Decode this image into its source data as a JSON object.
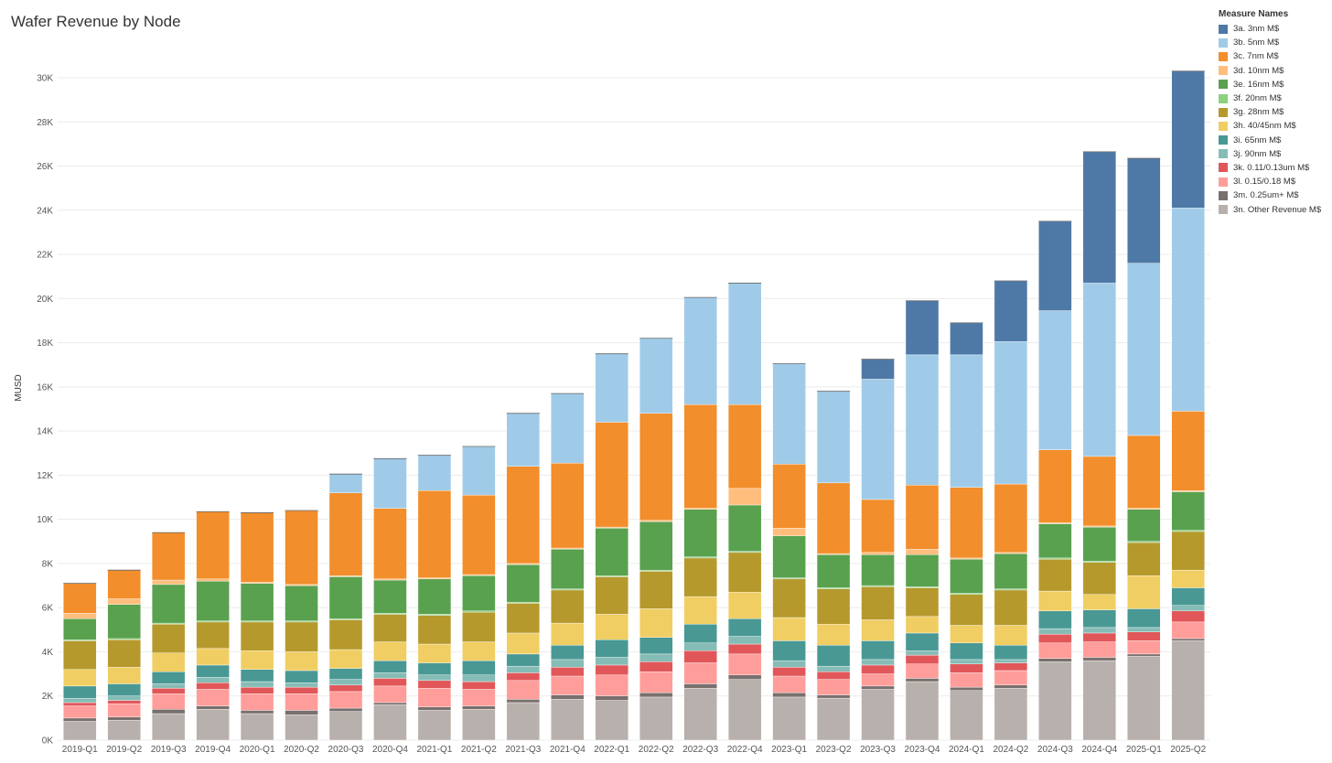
{
  "chart_data": {
    "type": "bar",
    "stacked": true,
    "title": "Wafer Revenue by Node",
    "ylabel": "MUSD",
    "ylim": [
      0,
      31000
    ],
    "yticks": [
      0,
      2000,
      4000,
      6000,
      8000,
      10000,
      12000,
      14000,
      16000,
      18000,
      20000,
      22000,
      24000,
      26000,
      28000,
      30000
    ],
    "ytick_labels": [
      "0K",
      "2K",
      "4K",
      "6K",
      "8K",
      "10K",
      "12K",
      "14K",
      "16K",
      "18K",
      "20K",
      "22K",
      "24K",
      "26K",
      "28K",
      "30K"
    ],
    "grid": true,
    "legend_position": "top-right",
    "legend_title": "Measure Names",
    "categories": [
      "2019-Q1",
      "2019-Q2",
      "2019-Q3",
      "2019-Q4",
      "2020-Q1",
      "2020-Q2",
      "2020-Q3",
      "2020-Q4",
      "2021-Q1",
      "2021-Q2",
      "2021-Q3",
      "2021-Q4",
      "2022-Q1",
      "2022-Q2",
      "2022-Q3",
      "2022-Q4",
      "2023-Q1",
      "2023-Q2",
      "2023-Q3",
      "2023-Q4",
      "2024-Q1",
      "2024-Q2",
      "2024-Q3",
      "2024-Q4",
      "2025-Q1",
      "2025-Q2"
    ],
    "series": [
      {
        "name": "3n. Other Revenue M$",
        "color": "#b8b0ac",
        "values": [
          850,
          900,
          1200,
          1400,
          1200,
          1150,
          1300,
          1600,
          1350,
          1400,
          1700,
          1850,
          1800,
          1950,
          2350,
          2750,
          1950,
          1900,
          2300,
          2650,
          2250,
          2350,
          3550,
          3600,
          3800,
          4500
        ]
      },
      {
        "name": "3m. 0.25um+ M$",
        "color": "#79706e",
        "values": [
          150,
          150,
          200,
          150,
          150,
          200,
          150,
          100,
          150,
          150,
          150,
          200,
          200,
          200,
          200,
          200,
          200,
          150,
          150,
          150,
          150,
          150,
          150,
          150,
          100,
          100
        ]
      },
      {
        "name": "3l. 0.15/0.18 M$",
        "color": "#ff9d9a",
        "values": [
          550,
          600,
          700,
          750,
          750,
          750,
          750,
          750,
          850,
          750,
          850,
          850,
          950,
          950,
          950,
          950,
          750,
          700,
          550,
          650,
          650,
          650,
          700,
          700,
          600,
          750
        ]
      },
      {
        "name": "3k. 0.11/0.13um M$",
        "color": "#e15759",
        "values": [
          150,
          150,
          250,
          300,
          300,
          300,
          300,
          350,
          350,
          350,
          350,
          400,
          450,
          450,
          550,
          450,
          400,
          350,
          400,
          400,
          400,
          350,
          400,
          400,
          400,
          500
        ]
      },
      {
        "name": "3j. 90nm M$",
        "color": "#86bcb6",
        "values": [
          200,
          200,
          200,
          250,
          250,
          200,
          250,
          250,
          250,
          300,
          300,
          350,
          350,
          350,
          350,
          350,
          300,
          250,
          250,
          200,
          200,
          150,
          250,
          250,
          200,
          250
        ]
      },
      {
        "name": "3i. 65nm M$",
        "color": "#499894",
        "values": [
          550,
          550,
          550,
          550,
          550,
          550,
          500,
          550,
          550,
          650,
          550,
          650,
          800,
          750,
          850,
          800,
          900,
          950,
          850,
          800,
          750,
          650,
          800,
          800,
          850,
          800
        ]
      },
      {
        "name": "3h. 40/45nm M$",
        "color": "#f1ce63",
        "values": [
          750,
          750,
          850,
          750,
          850,
          850,
          850,
          850,
          850,
          850,
          950,
          1000,
          1150,
          1300,
          1250,
          1200,
          1050,
          950,
          950,
          750,
          800,
          900,
          900,
          700,
          1500,
          800
        ]
      },
      {
        "name": "3g. 28nm M$",
        "color": "#b6992d",
        "values": [
          1300,
          1250,
          1300,
          1200,
          1300,
          1350,
          1350,
          1250,
          1300,
          1350,
          1350,
          1500,
          1700,
          1700,
          1750,
          1800,
          1750,
          1600,
          1500,
          1300,
          1400,
          1600,
          1450,
          1450,
          1500,
          1750
        ]
      },
      {
        "name": "3f. 20nm M$",
        "color": "#8cd17d",
        "values": [
          50,
          50,
          50,
          50,
          50,
          50,
          50,
          50,
          50,
          50,
          50,
          50,
          50,
          50,
          50,
          50,
          50,
          50,
          50,
          50,
          50,
          50,
          50,
          50,
          50,
          50
        ]
      },
      {
        "name": "3e. 16nm M$",
        "color": "#59a14f",
        "values": [
          950,
          1550,
          1750,
          1800,
          1700,
          1600,
          1900,
          1500,
          1600,
          1600,
          1700,
          1800,
          2150,
          2200,
          2150,
          2100,
          1900,
          1500,
          1400,
          1450,
          1550,
          1600,
          1550,
          1550,
          1450,
          1750
        ]
      },
      {
        "name": "3d. 10nm M$",
        "color": "#ffbe7d",
        "values": [
          250,
          250,
          200,
          100,
          50,
          50,
          50,
          50,
          50,
          50,
          50,
          50,
          50,
          50,
          50,
          750,
          350,
          50,
          100,
          250,
          50,
          50,
          50,
          50,
          50,
          50
        ]
      },
      {
        "name": "3c. 7nm M$",
        "color": "#f28e2b",
        "values": [
          1350,
          1300,
          2150,
          3050,
          3150,
          3350,
          3750,
          3200,
          3950,
          3600,
          4400,
          3850,
          4750,
          4850,
          4700,
          3800,
          2900,
          3200,
          2400,
          2900,
          3200,
          3100,
          3300,
          3150,
          3300,
          3600
        ]
      },
      {
        "name": "3b. 5nm M$",
        "color": "#a0cbe8",
        "values": [
          0,
          0,
          0,
          0,
          0,
          0,
          850,
          2250,
          1600,
          2200,
          2400,
          3150,
          3100,
          3400,
          4850,
          5500,
          4550,
          4150,
          5450,
          5900,
          6000,
          6450,
          6300,
          7850,
          7800,
          9200
        ]
      },
      {
        "name": "3a. 3nm M$",
        "color": "#4e79a7",
        "values": [
          0,
          0,
          0,
          0,
          0,
          0,
          0,
          0,
          0,
          0,
          0,
          0,
          0,
          0,
          0,
          0,
          0,
          0,
          900,
          2450,
          1450,
          2750,
          4050,
          5950,
          4750,
          6200
        ]
      }
    ]
  }
}
